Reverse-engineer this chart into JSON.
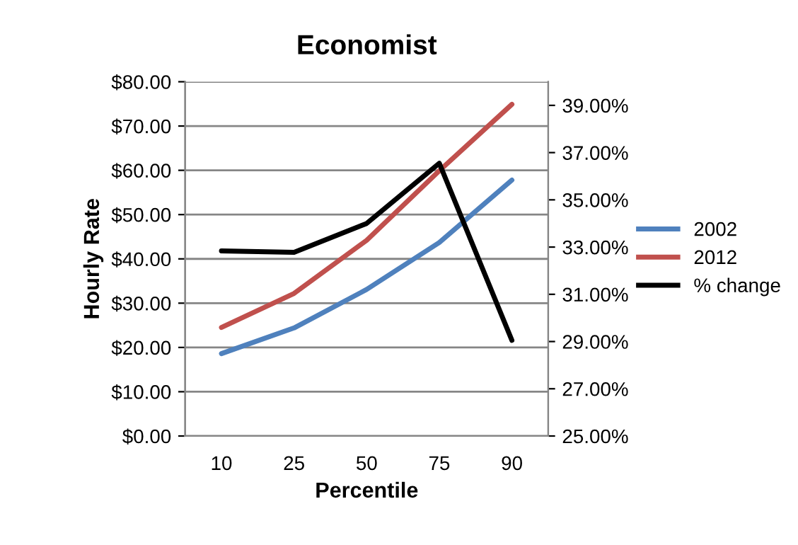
{
  "chart_data": {
    "type": "line",
    "title": "Economist",
    "xlabel": "Percentile",
    "ylabel": "Hourly Rate",
    "categories": [
      "10",
      "25",
      "50",
      "75",
      "90"
    ],
    "series": [
      {
        "name": "2002",
        "color": "#4f81bd",
        "values": [
          18.6,
          24.4,
          33.1,
          43.7,
          57.8
        ]
      },
      {
        "name": "2012",
        "color": "#c0504d",
        "values": [
          24.5,
          32.2,
          44.2,
          59.9,
          74.9
        ]
      },
      {
        "name": "% change",
        "color": "#000000",
        "axis": "y2",
        "values": [
          32.84,
          32.78,
          34.0,
          36.55,
          29.05
        ]
      }
    ],
    "ylim": [
      0,
      80
    ],
    "yticks": [
      {
        "value": 0,
        "label": "$0.00"
      },
      {
        "value": 10,
        "label": "$10.00"
      },
      {
        "value": 20,
        "label": "$20.00"
      },
      {
        "value": 30,
        "label": "$30.00"
      },
      {
        "value": 40,
        "label": "$40.00"
      },
      {
        "value": 50,
        "label": "$50.00"
      },
      {
        "value": 60,
        "label": "$60.00"
      },
      {
        "value": 70,
        "label": "$70.00"
      },
      {
        "value": 80,
        "label": "$80.00"
      }
    ],
    "y2lim": [
      25,
      40
    ],
    "y2ticks": [
      {
        "value": 25,
        "label": "25.00%"
      },
      {
        "value": 27,
        "label": "27.00%"
      },
      {
        "value": 29,
        "label": "29.00%"
      },
      {
        "value": 31,
        "label": "31.00%"
      },
      {
        "value": 33,
        "label": "33.00%"
      },
      {
        "value": 35,
        "label": "35.00%"
      },
      {
        "value": 37,
        "label": "37.00%"
      },
      {
        "value": 39,
        "label": "39.00%"
      }
    ],
    "grid": "y",
    "legend": "right",
    "marker": "none",
    "line_style": "solid"
  }
}
